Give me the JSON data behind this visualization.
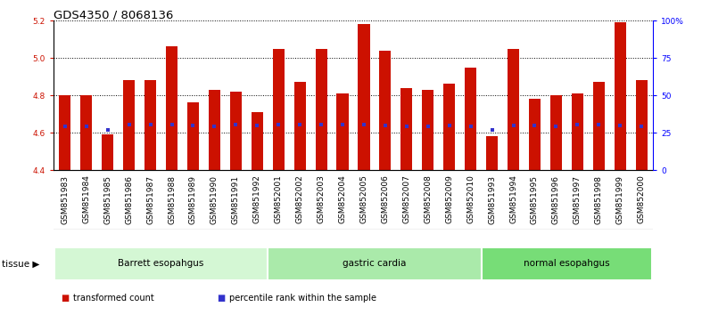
{
  "title": "GDS4350 / 8068136",
  "samples": [
    "GSM851983",
    "GSM851984",
    "GSM851985",
    "GSM851986",
    "GSM851987",
    "GSM851988",
    "GSM851989",
    "GSM851990",
    "GSM851991",
    "GSM851992",
    "GSM852001",
    "GSM852002",
    "GSM852003",
    "GSM852004",
    "GSM852005",
    "GSM852006",
    "GSM852007",
    "GSM852008",
    "GSM852009",
    "GSM852010",
    "GSM851993",
    "GSM851994",
    "GSM851995",
    "GSM851996",
    "GSM851997",
    "GSM851998",
    "GSM851999",
    "GSM852000"
  ],
  "bar_values": [
    4.8,
    4.8,
    4.59,
    4.88,
    4.88,
    5.06,
    4.76,
    4.83,
    4.82,
    4.71,
    5.05,
    4.87,
    5.05,
    4.81,
    5.18,
    5.04,
    4.84,
    4.83,
    4.86,
    4.95,
    4.58,
    5.05,
    4.78,
    4.8,
    4.81,
    4.87,
    5.19,
    4.88
  ],
  "percentile_values": [
    4.635,
    4.635,
    4.615,
    4.645,
    4.645,
    4.645,
    4.638,
    4.635,
    4.643,
    4.638,
    4.643,
    4.643,
    4.643,
    4.643,
    4.645,
    4.64,
    4.635,
    4.635,
    4.64,
    4.635,
    4.615,
    4.64,
    4.638,
    4.635,
    4.643,
    4.643,
    4.64,
    4.635
  ],
  "groups": [
    {
      "label": "Barrett esopahgus",
      "start": 0,
      "end": 9,
      "color": "#d4f7d4"
    },
    {
      "label": "gastric cardia",
      "start": 10,
      "end": 19,
      "color": "#aaeaaa"
    },
    {
      "label": "normal esopahgus",
      "start": 20,
      "end": 27,
      "color": "#77dd77"
    }
  ],
  "ylim": [
    4.4,
    5.2
  ],
  "yticks": [
    4.4,
    4.6,
    4.8,
    5.0,
    5.2
  ],
  "right_ytick_pcts": [
    0,
    25,
    50,
    75,
    100
  ],
  "right_ylabels": [
    "0",
    "25",
    "50",
    "75",
    "100%"
  ],
  "bar_color": "#cc1100",
  "dot_color": "#3333cc",
  "bar_width": 0.55,
  "legend_items": [
    {
      "label": "transformed count",
      "color": "#cc1100"
    },
    {
      "label": "percentile rank within the sample",
      "color": "#3333cc"
    }
  ],
  "tissue_label": "tissue",
  "title_fontsize": 9.5,
  "tick_fontsize": 6.5
}
